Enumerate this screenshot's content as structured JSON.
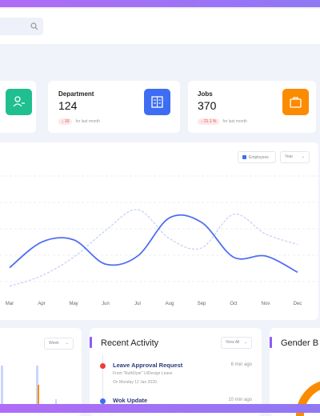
{
  "cards": [
    {
      "title": "Department",
      "value": "124",
      "change": "10",
      "note": "for last month"
    },
    {
      "title": "Jobs",
      "value": "370",
      "change": "21.1 %",
      "note": "for last month"
    }
  ],
  "chart_data": {
    "type": "line",
    "legend": "Employees",
    "filter": "Year",
    "categories": [
      "Mar",
      "Apr",
      "May",
      "Jun",
      "Jul",
      "Aug",
      "Sep",
      "Oct",
      "Nov",
      "Dec"
    ],
    "ylim": [
      0,
      100
    ],
    "series": [
      {
        "name": "Employees",
        "color": "#4f6ef2",
        "values": [
          21,
          43,
          45,
          24,
          31,
          64,
          60,
          30,
          31,
          17
        ]
      },
      {
        "color": "#c3cdf6",
        "dashed": true,
        "values": [
          5,
          14,
          30,
          53,
          71,
          46,
          38,
          67,
          50,
          41
        ]
      }
    ]
  },
  "week_panel": {
    "filter": "Week"
  },
  "activity": {
    "title": "Recent Activity",
    "filter": "View All",
    "items": [
      {
        "title": "Leave Approval Request",
        "time": "6 min ago",
        "line1": "From \"RuthDyer\" UiDesign Leave",
        "line2": "On Monday 12 Jan 2020."
      },
      {
        "title": "Wok Update",
        "time": "10 min ago"
      }
    ]
  },
  "gender": {
    "title": "Gender B"
  }
}
